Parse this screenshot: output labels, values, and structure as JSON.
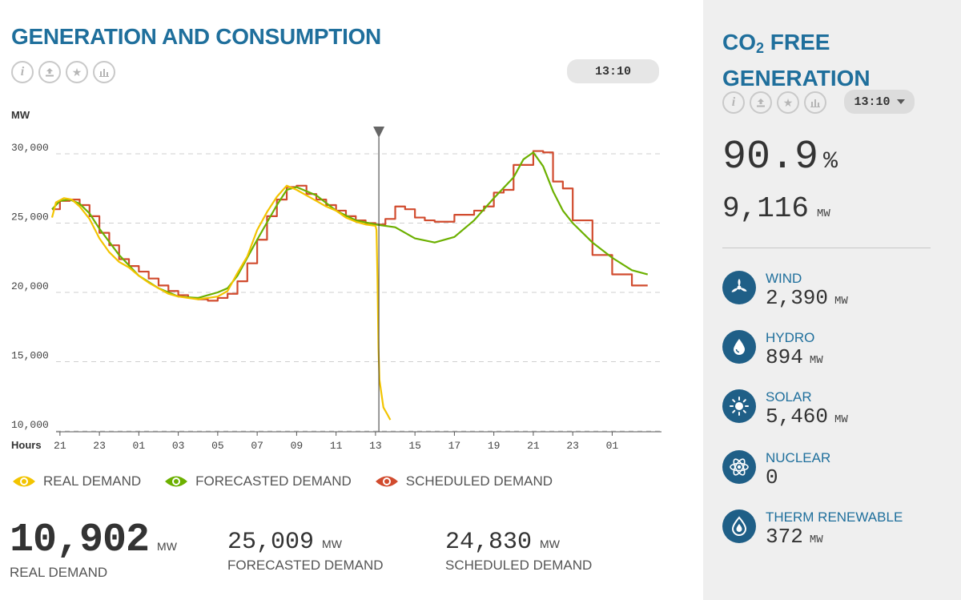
{
  "left": {
    "title": "GENERATION AND CONSUMPTION",
    "time": "13:10",
    "tool_icons": [
      "info-icon",
      "upload-icon",
      "star-icon",
      "bar-chart-icon"
    ],
    "legend": [
      {
        "label": "REAL DEMAND",
        "color": "#f2c400"
      },
      {
        "label": "FORECASTED DEMAND",
        "color": "#6cb000"
      },
      {
        "label": "SCHEDULED DEMAND",
        "color": "#d14b2e"
      }
    ],
    "stats": {
      "real": {
        "value": "10,902",
        "unit": "MW",
        "label": "REAL DEMAND"
      },
      "forecast": {
        "value": "25,009",
        "unit": "MW",
        "label": "FORECASTED DEMAND"
      },
      "scheduled": {
        "value": "24,830",
        "unit": "MW",
        "label": "SCHEDULED DEMAND"
      }
    }
  },
  "right": {
    "title_line1_a": "CO",
    "title_line1_sub": "2",
    "title_line1_b": " FREE",
    "title_line2": "GENERATION",
    "time": "13:10",
    "percent": "90.9",
    "percent_sign": "%",
    "total": "9,116",
    "total_unit": "MW",
    "sources": [
      {
        "name": "WIND",
        "value": "2,390",
        "unit": "MW",
        "icon": "wind-turbine-icon"
      },
      {
        "name": "HYDRO",
        "value": "894",
        "unit": "MW",
        "icon": "water-drop-icon"
      },
      {
        "name": "SOLAR",
        "value": "5,460",
        "unit": "MW",
        "icon": "sun-icon"
      },
      {
        "name": "NUCLEAR",
        "value": "0",
        "unit": "",
        "icon": "atom-icon"
      },
      {
        "name": "THERM RENEWABLE",
        "value": "372",
        "unit": "MW",
        "icon": "flame-drop-icon"
      }
    ]
  },
  "chart_data": {
    "type": "line",
    "ylabel": "MW",
    "xlabel": "Hours",
    "ylim": [
      10000,
      30000
    ],
    "yticks": [
      10000,
      15000,
      20000,
      25000,
      30000
    ],
    "ytick_labels": [
      "10,000",
      "15,000",
      "20,000",
      "25,000",
      "30,000"
    ],
    "xlim": [
      20.6,
      51.5
    ],
    "xticks": [
      21,
      23,
      25,
      27,
      29,
      31,
      33,
      35,
      37,
      39,
      41,
      43,
      45,
      47,
      49
    ],
    "xtick_labels": [
      "21",
      "23",
      "01",
      "03",
      "05",
      "07",
      "09",
      "11",
      "13",
      "15",
      "17",
      "19",
      "21",
      "23",
      "01"
    ],
    "now_marker": 37.17,
    "grid": "horizontal dashed",
    "series": [
      {
        "name": "REAL DEMAND",
        "color": "#f2c400",
        "style": "line",
        "x": [
          20.6,
          20.8,
          21.2,
          21.6,
          22.0,
          22.5,
          23.0,
          23.5,
          24.0,
          24.5,
          25.0,
          25.5,
          26.0,
          26.5,
          27.0,
          27.5,
          28.0,
          28.5,
          29.0,
          29.5,
          30.0,
          30.5,
          31.0,
          31.5,
          32.0,
          32.5,
          33.0,
          33.5,
          34.0,
          34.5,
          35.0,
          35.5,
          36.0,
          36.5,
          37.0,
          37.05,
          37.1,
          37.15,
          37.2,
          37.4,
          37.6,
          37.75
        ],
        "y": [
          25400,
          26500,
          26800,
          26700,
          26200,
          25300,
          23900,
          22900,
          22200,
          21800,
          21200,
          20700,
          20300,
          19900,
          19700,
          19600,
          19500,
          19600,
          19700,
          20100,
          21400,
          22600,
          24500,
          25800,
          26900,
          27700,
          27400,
          27000,
          26600,
          26200,
          25900,
          25400,
          25100,
          24900,
          24800,
          24500,
          21000,
          16000,
          13700,
          11700,
          11200,
          10800
        ]
      },
      {
        "name": "FORECASTED DEMAND",
        "color": "#6cb000",
        "style": "line",
        "x": [
          20.6,
          21.0,
          21.5,
          22.0,
          22.5,
          23.0,
          24.0,
          25.0,
          26.0,
          27.0,
          28.0,
          28.5,
          29.0,
          29.5,
          30.0,
          31.0,
          32.0,
          32.5,
          33.0,
          34.0,
          35.0,
          36.0,
          37.0,
          38.0,
          39.0,
          40.0,
          41.0,
          42.0,
          43.0,
          44.0,
          44.5,
          45.0,
          45.5,
          46.0,
          46.5,
          47.0,
          48.0,
          49.0,
          50.0,
          50.8
        ],
        "y": [
          26000,
          26600,
          26700,
          26400,
          25700,
          24600,
          22700,
          21200,
          20300,
          19700,
          19600,
          19800,
          20000,
          20300,
          21200,
          23800,
          26300,
          27400,
          27600,
          27000,
          25900,
          25200,
          24900,
          24700,
          23900,
          23600,
          24000,
          25200,
          26800,
          28300,
          29600,
          30100,
          29100,
          27300,
          25900,
          25000,
          23600,
          22500,
          21600,
          21300
        ]
      },
      {
        "name": "SCHEDULED DEMAND",
        "color": "#d14b2e",
        "style": "step",
        "x": [
          20.6,
          21.0,
          21.5,
          22.0,
          22.5,
          23.0,
          23.5,
          24.0,
          24.5,
          25.0,
          25.5,
          26.0,
          26.5,
          27.0,
          27.5,
          28.0,
          28.5,
          29.0,
          29.5,
          30.0,
          30.5,
          31.0,
          31.5,
          32.0,
          32.5,
          33.0,
          33.5,
          34.0,
          34.5,
          35.0,
          35.5,
          36.0,
          36.5,
          37.0,
          37.5,
          38.0,
          38.5,
          39.0,
          39.5,
          40.0,
          40.5,
          41.0,
          41.5,
          42.0,
          42.5,
          43.0,
          43.5,
          44.0,
          44.5,
          45.0,
          45.5,
          46.0,
          46.5,
          47.0,
          47.5,
          48.0,
          48.5,
          49.0,
          49.5,
          50.0,
          50.8
        ],
        "y": [
          26000,
          26600,
          26700,
          26300,
          25500,
          24300,
          23400,
          22400,
          21900,
          21500,
          21000,
          20500,
          20100,
          19800,
          19600,
          19500,
          19400,
          19600,
          19900,
          20800,
          22100,
          23800,
          25500,
          26700,
          27600,
          27700,
          27100,
          26700,
          26300,
          25900,
          25500,
          25200,
          25000,
          24900,
          25300,
          26200,
          26000,
          25400,
          25200,
          25100,
          25100,
          25600,
          25600,
          25900,
          26200,
          27200,
          27400,
          29200,
          29200,
          30200,
          30100,
          28000,
          27500,
          25200,
          25200,
          22700,
          22700,
          21300,
          21300,
          20500,
          20500
        ]
      }
    ]
  }
}
